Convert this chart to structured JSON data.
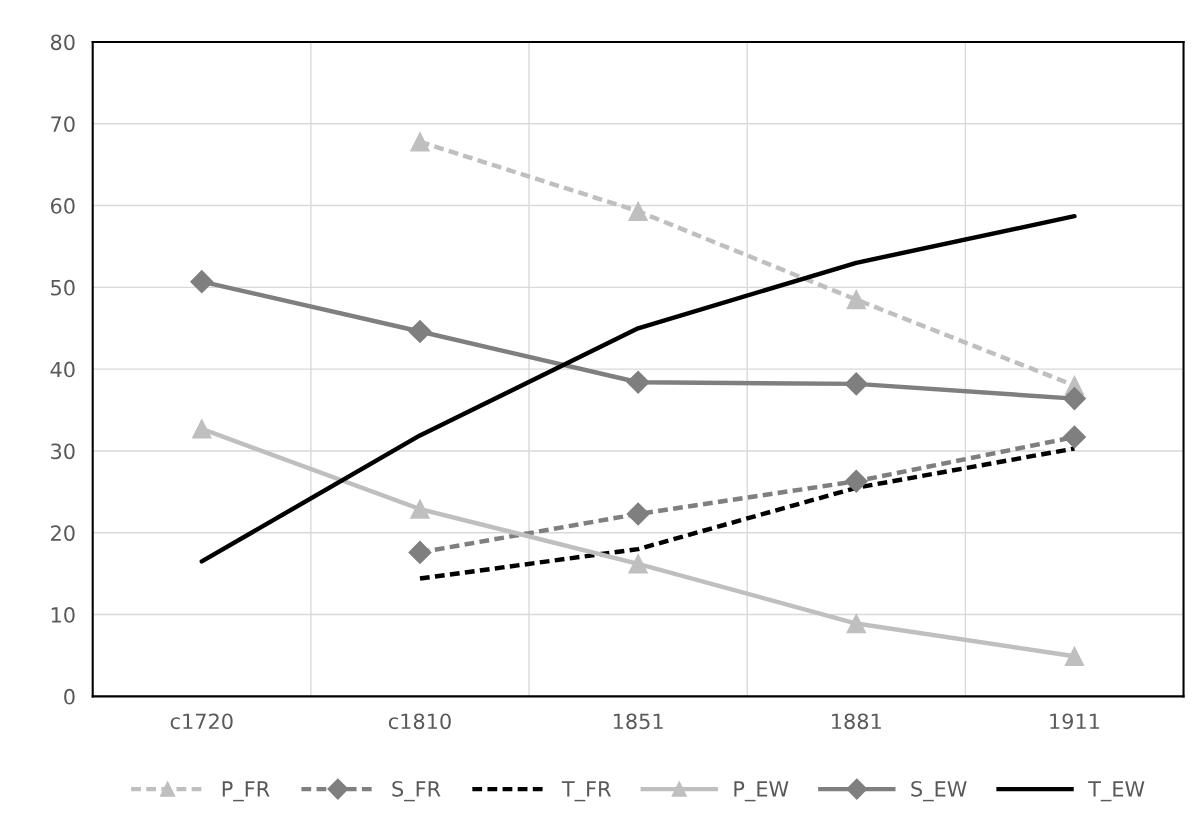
{
  "chart_data": {
    "type": "line",
    "categories": [
      "c1720",
      "c1810",
      "1851",
      "1881",
      "1911"
    ],
    "series": [
      {
        "name": "P_FR",
        "color": "#bfbfbf",
        "line_style": "dashed",
        "marker": "triangle",
        "values": [
          null,
          67.8,
          59.3,
          48.5,
          38.0
        ]
      },
      {
        "name": "S_FR",
        "color": "#7f7f7f",
        "line_style": "dashed",
        "marker": "diamond",
        "values": [
          null,
          17.6,
          22.3,
          26.3,
          31.7
        ]
      },
      {
        "name": "T_FR",
        "color": "#000000",
        "line_style": "dashed",
        "marker": "none",
        "values": [
          null,
          14.4,
          18.0,
          25.5,
          30.3
        ]
      },
      {
        "name": "P_EW",
        "color": "#bfbfbf",
        "line_style": "solid",
        "marker": "triangle",
        "values": [
          32.7,
          22.9,
          16.2,
          8.9,
          4.9
        ]
      },
      {
        "name": "S_EW",
        "color": "#7f7f7f",
        "line_style": "solid",
        "marker": "diamond",
        "values": [
          50.7,
          44.6,
          38.4,
          38.2,
          36.4
        ]
      },
      {
        "name": "T_EW",
        "color": "#000000",
        "line_style": "solid",
        "marker": "none",
        "values": [
          16.5,
          31.9,
          45.0,
          53.0,
          58.7
        ]
      }
    ],
    "ylim": [
      0,
      80
    ],
    "yticks": [
      0,
      10,
      20,
      30,
      40,
      50,
      60,
      70,
      80
    ],
    "grid": true,
    "legend": "bottom"
  }
}
